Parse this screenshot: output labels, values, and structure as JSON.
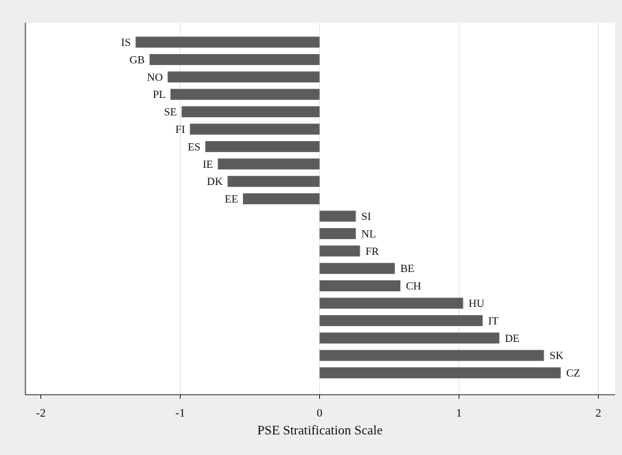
{
  "chart_data": {
    "type": "bar",
    "orientation": "horizontal",
    "title": "",
    "xlabel": "PSE Stratification Scale",
    "ylabel": "",
    "xlim": [
      -2,
      2
    ],
    "xticks": [
      -2,
      -1,
      0,
      1,
      2
    ],
    "tick_labels": [
      "-2",
      "-1",
      "0",
      "1",
      "2"
    ],
    "grid": true,
    "legend": "none",
    "bar_color": "#5c5c5c",
    "background": "#eeeeee",
    "plot_background": "#ffffff",
    "categories": [
      "IS",
      "GB",
      "NO",
      "PL",
      "SE",
      "FI",
      "ES",
      "IE",
      "DK",
      "EE",
      "SI",
      "NL",
      "FR",
      "BE",
      "CH",
      "HU",
      "IT",
      "DE",
      "SK",
      "CZ"
    ],
    "values": [
      -1.32,
      -1.22,
      -1.09,
      -1.07,
      -0.99,
      -0.93,
      -0.82,
      -0.73,
      -0.66,
      -0.55,
      0.26,
      0.26,
      0.29,
      0.54,
      0.58,
      1.03,
      1.17,
      1.29,
      1.61,
      1.73
    ]
  }
}
